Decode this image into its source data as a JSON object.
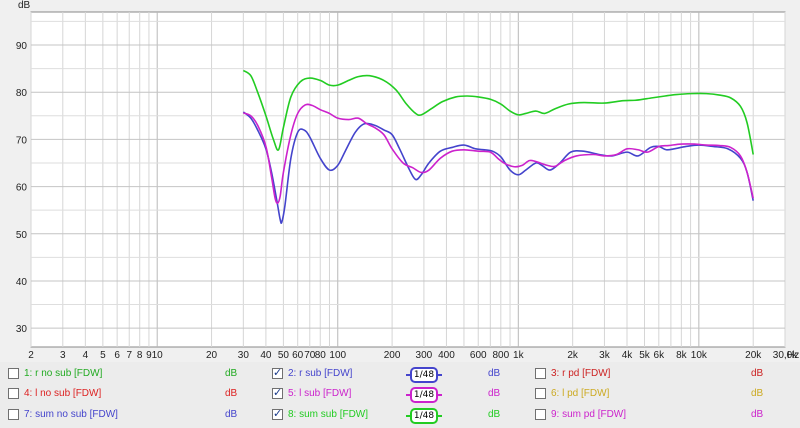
{
  "chart_data": {
    "type": "line",
    "title": "",
    "xlabel": "Hz",
    "ylabel": "dB",
    "x_scale": "log",
    "xlim": [
      2,
      30000
    ],
    "ylim": [
      26,
      97
    ],
    "grid": true,
    "y_ticks": [
      30,
      40,
      50,
      60,
      70,
      80,
      90
    ],
    "x_ticks": [
      {
        "v": 2,
        "label": "2"
      },
      {
        "v": 3,
        "label": "3"
      },
      {
        "v": 4,
        "label": "4"
      },
      {
        "v": 5,
        "label": "5"
      },
      {
        "v": 6,
        "label": "6"
      },
      {
        "v": 7,
        "label": "7"
      },
      {
        "v": 8,
        "label": "8"
      },
      {
        "v": 9,
        "label": "9"
      },
      {
        "v": 10,
        "label": "10"
      },
      {
        "v": 20,
        "label": "20"
      },
      {
        "v": 30,
        "label": "30"
      },
      {
        "v": 40,
        "label": "40"
      },
      {
        "v": 50,
        "label": "50"
      },
      {
        "v": 60,
        "label": "60"
      },
      {
        "v": 70,
        "label": "70"
      },
      {
        "v": 80,
        "label": "80"
      },
      {
        "v": 100,
        "label": "100"
      },
      {
        "v": 200,
        "label": "200"
      },
      {
        "v": 300,
        "label": "300"
      },
      {
        "v": 400,
        "label": "400"
      },
      {
        "v": 600,
        "label": "600"
      },
      {
        "v": 800,
        "label": "800"
      },
      {
        "v": 1000,
        "label": "1k"
      },
      {
        "v": 2000,
        "label": "2k"
      },
      {
        "v": 3000,
        "label": "3k"
      },
      {
        "v": 4000,
        "label": "4k"
      },
      {
        "v": 5000,
        "label": "5k"
      },
      {
        "v": 6000,
        "label": "6k"
      },
      {
        "v": 8000,
        "label": "8k"
      },
      {
        "v": 10000,
        "label": "10k"
      },
      {
        "v": 20000,
        "label": "20k"
      },
      {
        "v": 30000,
        "label": "30,0k"
      }
    ],
    "series": [
      {
        "name": "8: sum sub [FDW]",
        "color": "#22cc22",
        "points": [
          [
            30,
            84.6
          ],
          [
            33,
            83.5
          ],
          [
            36,
            80
          ],
          [
            40,
            75
          ],
          [
            44,
            70
          ],
          [
            47,
            67.8
          ],
          [
            50,
            72.5
          ],
          [
            55,
            79
          ],
          [
            62,
            82.2
          ],
          [
            70,
            83
          ],
          [
            80,
            82.5
          ],
          [
            90,
            81.5
          ],
          [
            100,
            81.5
          ],
          [
            115,
            82.5
          ],
          [
            130,
            83.3
          ],
          [
            150,
            83.5
          ],
          [
            180,
            82.5
          ],
          [
            210,
            80.5
          ],
          [
            240,
            77.5
          ],
          [
            270,
            75.5
          ],
          [
            290,
            75.2
          ],
          [
            330,
            76.5
          ],
          [
            380,
            78
          ],
          [
            450,
            79
          ],
          [
            520,
            79.2
          ],
          [
            600,
            79
          ],
          [
            700,
            78.5
          ],
          [
            800,
            77.5
          ],
          [
            900,
            76
          ],
          [
            1000,
            75.2
          ],
          [
            1100,
            75.5
          ],
          [
            1250,
            76
          ],
          [
            1400,
            75.5
          ],
          [
            1600,
            76.5
          ],
          [
            1900,
            77.5
          ],
          [
            2300,
            77.8
          ],
          [
            3000,
            77.7
          ],
          [
            3800,
            78.2
          ],
          [
            4500,
            78.3
          ],
          [
            5500,
            78.8
          ],
          [
            6500,
            79.2
          ],
          [
            7500,
            79.5
          ],
          [
            9000,
            79.7
          ],
          [
            11000,
            79.7
          ],
          [
            13000,
            79.4
          ],
          [
            15000,
            78.8
          ],
          [
            17000,
            77
          ],
          [
            18500,
            73.5
          ],
          [
            20000,
            66.8
          ]
        ]
      },
      {
        "name": "2: r sub [FDW]",
        "color": "#4444cc",
        "points": [
          [
            30,
            75.8
          ],
          [
            33,
            74.5
          ],
          [
            36,
            72
          ],
          [
            40,
            68
          ],
          [
            43,
            63
          ],
          [
            46,
            57
          ],
          [
            48,
            53
          ],
          [
            49,
            52.5
          ],
          [
            51,
            56
          ],
          [
            55,
            66
          ],
          [
            60,
            71.5
          ],
          [
            65,
            72
          ],
          [
            70,
            70.5
          ],
          [
            80,
            66
          ],
          [
            90,
            63.5
          ],
          [
            100,
            64.5
          ],
          [
            110,
            67.5
          ],
          [
            125,
            71.5
          ],
          [
            140,
            73.3
          ],
          [
            160,
            73
          ],
          [
            180,
            72
          ],
          [
            200,
            71
          ],
          [
            220,
            68
          ],
          [
            250,
            63.5
          ],
          [
            270,
            61.5
          ],
          [
            290,
            62.5
          ],
          [
            320,
            65
          ],
          [
            370,
            67.5
          ],
          [
            430,
            68.3
          ],
          [
            500,
            68.8
          ],
          [
            580,
            68
          ],
          [
            650,
            67.8
          ],
          [
            720,
            67.5
          ],
          [
            800,
            66.3
          ],
          [
            900,
            63.5
          ],
          [
            1000,
            62.5
          ],
          [
            1100,
            63.5
          ],
          [
            1250,
            65
          ],
          [
            1350,
            64.5
          ],
          [
            1500,
            63.5
          ],
          [
            1700,
            65
          ],
          [
            1950,
            67.3
          ],
          [
            2300,
            67.5
          ],
          [
            2800,
            66.8
          ],
          [
            3300,
            66.5
          ],
          [
            4000,
            67.3
          ],
          [
            4600,
            66.5
          ],
          [
            5400,
            68.3
          ],
          [
            6000,
            68.5
          ],
          [
            6600,
            67.8
          ],
          [
            7300,
            68
          ],
          [
            8500,
            68.5
          ],
          [
            10000,
            68.8
          ],
          [
            12000,
            68.5
          ],
          [
            14500,
            68
          ],
          [
            17000,
            66
          ],
          [
            18500,
            63
          ],
          [
            20000,
            57
          ]
        ]
      },
      {
        "name": "5: l sub [FDW]",
        "color": "#cc22cc",
        "points": [
          [
            30,
            75.6
          ],
          [
            33,
            75
          ],
          [
            36,
            73
          ],
          [
            40,
            68.5
          ],
          [
            43,
            62
          ],
          [
            45,
            57.5
          ],
          [
            46.5,
            56.5
          ],
          [
            48,
            58
          ],
          [
            50,
            63
          ],
          [
            55,
            71
          ],
          [
            60,
            75.5
          ],
          [
            66,
            77.3
          ],
          [
            72,
            77.2
          ],
          [
            80,
            76.3
          ],
          [
            90,
            75.5
          ],
          [
            100,
            74.5
          ],
          [
            115,
            74.2
          ],
          [
            130,
            74.5
          ],
          [
            145,
            73.3
          ],
          [
            160,
            72.5
          ],
          [
            180,
            71
          ],
          [
            200,
            68
          ],
          [
            230,
            65
          ],
          [
            260,
            64
          ],
          [
            290,
            63
          ],
          [
            320,
            63.5
          ],
          [
            370,
            66
          ],
          [
            430,
            67.5
          ],
          [
            500,
            67.8
          ],
          [
            600,
            67.5
          ],
          [
            700,
            67.3
          ],
          [
            780,
            65.8
          ],
          [
            850,
            64.8
          ],
          [
            950,
            64.2
          ],
          [
            1050,
            64.5
          ],
          [
            1150,
            65.5
          ],
          [
            1250,
            65.3
          ],
          [
            1450,
            64.5
          ],
          [
            1600,
            64.3
          ],
          [
            1800,
            65.5
          ],
          [
            2100,
            66.5
          ],
          [
            2600,
            66.8
          ],
          [
            3000,
            66.5
          ],
          [
            3500,
            66.8
          ],
          [
            4000,
            68
          ],
          [
            4600,
            67.8
          ],
          [
            5200,
            67.3
          ],
          [
            6000,
            68.5
          ],
          [
            6800,
            68.7
          ],
          [
            8000,
            69
          ],
          [
            9500,
            69
          ],
          [
            11000,
            68.8
          ],
          [
            13000,
            68.7
          ],
          [
            15000,
            68.3
          ],
          [
            17000,
            66.5
          ],
          [
            18500,
            63
          ],
          [
            20000,
            57.5
          ]
        ]
      }
    ]
  },
  "legend": {
    "rows": [
      [
        {
          "label": "1: r no sub [FDW]",
          "checked": false,
          "smooth": "",
          "db": "dB",
          "color": "#22aa22",
          "db_color": "#22aa22"
        },
        {
          "label": "2: r sub [FDW]",
          "checked": true,
          "smooth": "1/48",
          "db": "dB",
          "color": "#4444cc",
          "db_color": "#4444cc"
        },
        {
          "label": "3: r pd [FDW]",
          "checked": false,
          "smooth": "",
          "db": "dB",
          "color": "#cc2222",
          "db_color": "#cc2222"
        }
      ],
      [
        {
          "label": "4: l no sub [FDW]",
          "checked": false,
          "smooth": "",
          "db": "dB",
          "color": "#dd2222",
          "db_color": "#dd2222"
        },
        {
          "label": "5: l sub [FDW]",
          "checked": true,
          "smooth": "1/48",
          "db": "dB",
          "color": "#cc22cc",
          "db_color": "#cc22cc"
        },
        {
          "label": "6: l pd [FDW]",
          "checked": false,
          "smooth": "",
          "db": "dB",
          "color": "#ccaa22",
          "db_color": "#ccaa22"
        }
      ],
      [
        {
          "label": "7: sum no sub [FDW]",
          "checked": false,
          "smooth": "",
          "db": "dB",
          "color": "#4444cc",
          "db_color": "#4444cc"
        },
        {
          "label": "8: sum sub [FDW]",
          "checked": true,
          "smooth": "1/48",
          "db": "dB",
          "color": "#22cc22",
          "db_color": "#22cc22"
        },
        {
          "label": "9: sum pd [FDW]",
          "checked": false,
          "smooth": "",
          "db": "dB",
          "color": "#cc22cc",
          "db_color": "#cc22cc"
        }
      ]
    ]
  }
}
